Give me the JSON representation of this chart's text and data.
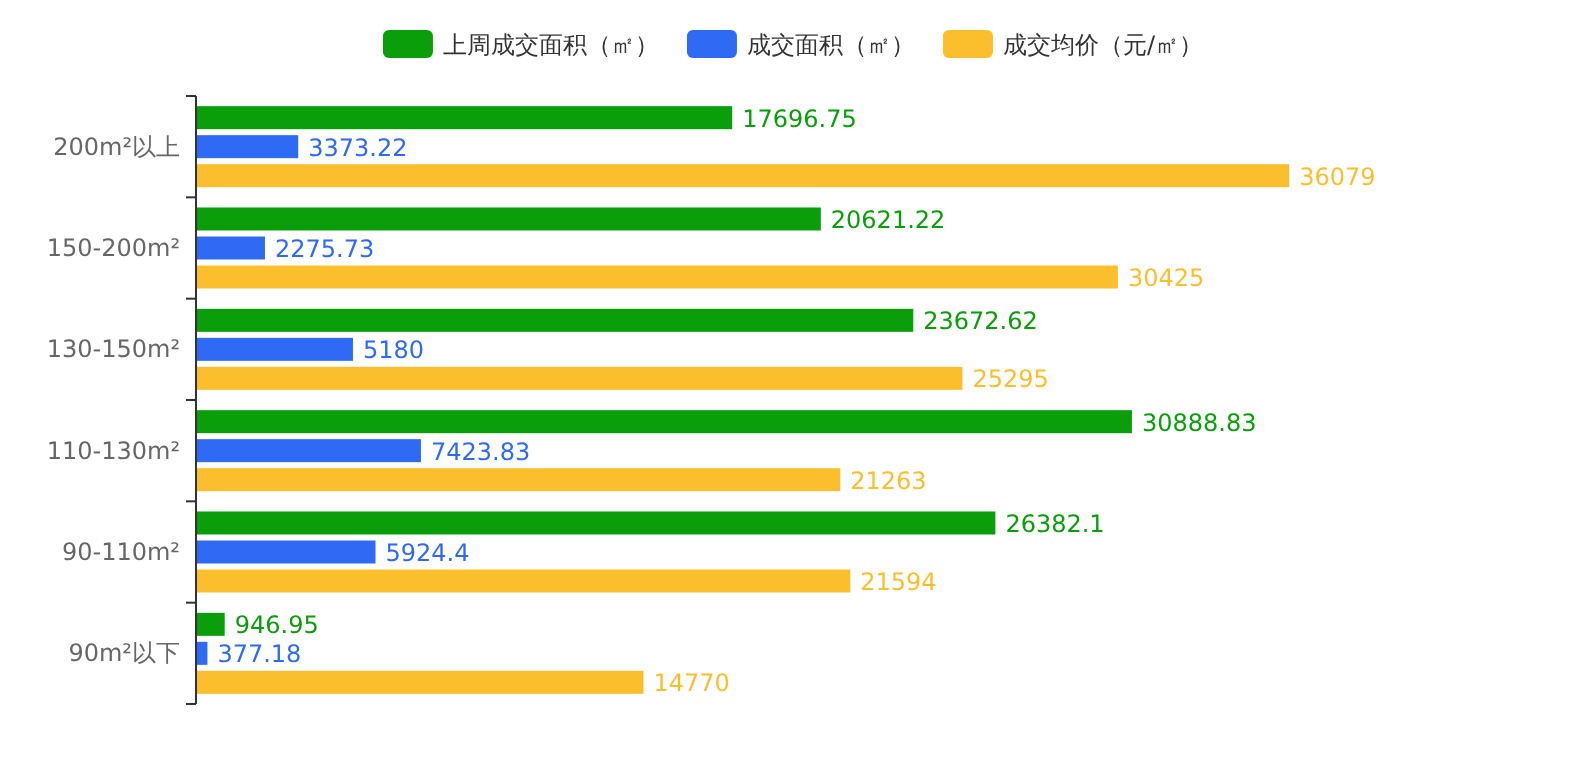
{
  "chart_data": {
    "type": "bar",
    "orientation": "horizontal",
    "data_labels": true,
    "legend": "top",
    "grid": false,
    "categories": [
      "200m²以上",
      "150-200m²",
      "130-150m²",
      "110-130m²",
      "90-110m²",
      "90m²以下"
    ],
    "series": [
      {
        "name": "上周成交面积（㎡）",
        "color": "#0a9e0a",
        "values": [
          17696.75,
          20621.22,
          23672.62,
          30888.83,
          26382.1,
          946.95
        ]
      },
      {
        "name": "成交面积（㎡）",
        "color": "#2f6af5",
        "values": [
          3373.22,
          2275.73,
          5180,
          7423.83,
          5924.4,
          377.18
        ]
      },
      {
        "name": "成交均价（元/㎡）",
        "color": "#fbbf2d",
        "values": [
          36079,
          30425,
          25295,
          21263,
          21594,
          14770
        ]
      }
    ]
  }
}
